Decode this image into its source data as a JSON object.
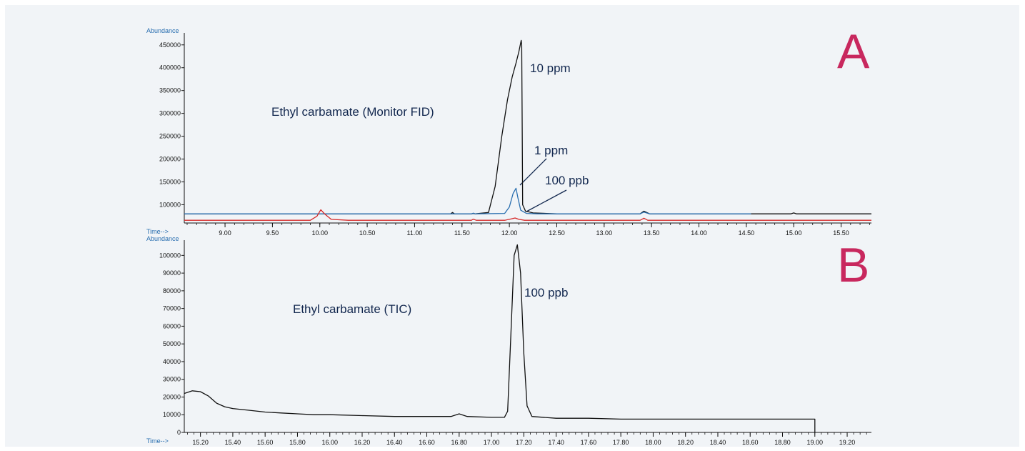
{
  "charts": [
    {
      "id": "A",
      "panel_letter": "A",
      "ylabel": "Abundance",
      "xlabel": "Time-->",
      "inner_label": "Ethyl carbamate (Monitor FID)",
      "x_ticks": [
        "9.00",
        "9.50",
        "10.00",
        "10.50",
        "11.00",
        "11.50",
        "12.00",
        "12.50",
        "13.00",
        "13.50",
        "14.00",
        "14.50",
        "15.00",
        "15.50"
      ],
      "y_ticks": [
        "100000",
        "150000",
        "200000",
        "250000",
        "300000",
        "350000",
        "400000",
        "450000"
      ],
      "annotations": [
        {
          "text": "10 ppm"
        },
        {
          "text": "1 ppm"
        },
        {
          "text": "100 ppb"
        }
      ]
    },
    {
      "id": "B",
      "panel_letter": "B",
      "ylabel": "Abundance",
      "xlabel": "Time-->",
      "inner_label": "Ethyl carbamate (TIC)",
      "x_ticks": [
        "15.20",
        "15.40",
        "15.60",
        "15.80",
        "16.00",
        "16.20",
        "16.40",
        "16.60",
        "16.80",
        "17.00",
        "17.20",
        "17.40",
        "17.60",
        "17.80",
        "18.00",
        "18.20",
        "18.40",
        "18.60",
        "18.80",
        "19.00",
        "19.20"
      ],
      "y_ticks": [
        "0",
        "10000",
        "20000",
        "30000",
        "40000",
        "50000",
        "60000",
        "70000",
        "80000",
        "90000",
        "100000"
      ],
      "annotations": [
        {
          "text": "100 ppb"
        }
      ]
    }
  ],
  "chart_data": [
    {
      "type": "line",
      "ylabel": "Abundance",
      "xlabel": "Time-->",
      "xlim": [
        8.57,
        15.82
      ],
      "ylim": [
        60000,
        470000
      ],
      "colors": {
        "10 ppm": "#111111",
        "1 ppm": "#2a6fb0",
        "100 ppb": "#d62a2a"
      },
      "series": [
        {
          "name": "10 ppm",
          "x": [
            8.57,
            9.5,
            10.5,
            11.0,
            11.38,
            11.4,
            11.42,
            11.6,
            11.62,
            11.64,
            11.78,
            11.85,
            11.92,
            11.98,
            12.03,
            12.07,
            12.1,
            12.125,
            12.13,
            12.14,
            12.17,
            12.25,
            12.5,
            13.0,
            13.38,
            13.42,
            13.48,
            14.0,
            14.97,
            15.0,
            15.03,
            15.82
          ],
          "y": [
            80000,
            80000,
            80000,
            80000,
            80000,
            83000,
            80000,
            80000,
            81000,
            80000,
            83000,
            140000,
            250000,
            330000,
            380000,
            410000,
            435000,
            460000,
            450000,
            100000,
            86000,
            82000,
            80000,
            80000,
            80000,
            86000,
            80000,
            80000,
            80000,
            82000,
            80000,
            80000
          ]
        },
        {
          "name": "1 ppm",
          "x": [
            8.57,
            9.5,
            10.5,
            11.0,
            11.6,
            11.62,
            11.64,
            11.95,
            12.0,
            12.04,
            12.07,
            12.09,
            12.12,
            12.18,
            12.3,
            12.8,
            13.38,
            13.42,
            13.48,
            14.0,
            14.55
          ],
          "y": [
            80000,
            80000,
            80000,
            80000,
            80000,
            81500,
            80000,
            81000,
            95000,
            125000,
            136000,
            115000,
            88000,
            81000,
            80000,
            80000,
            80000,
            84000,
            80000,
            80000,
            80000
          ]
        },
        {
          "name": "100 ppb",
          "x": [
            8.57,
            9.9,
            9.97,
            10.01,
            10.05,
            10.12,
            10.3,
            11.0,
            11.6,
            11.62,
            11.65,
            11.95,
            12.02,
            12.06,
            12.1,
            12.16,
            12.5,
            13.0,
            13.38,
            13.42,
            13.46,
            14.0,
            15.0,
            15.82
          ],
          "y": [
            66000,
            66000,
            75000,
            89000,
            80000,
            68000,
            66000,
            66000,
            66000,
            68500,
            66000,
            66000,
            69000,
            71000,
            68000,
            66000,
            66000,
            66000,
            66000,
            70500,
            66000,
            66000,
            66000,
            66000
          ]
        }
      ]
    },
    {
      "type": "line",
      "ylabel": "Abundance",
      "xlabel": "Time-->",
      "xlim": [
        15.1,
        19.35
      ],
      "ylim": [
        0,
        107000
      ],
      "colors": {
        "TIC": "#111111"
      },
      "series": [
        {
          "name": "",
          "x": [
            15.1,
            15.15,
            15.2,
            15.25,
            15.3,
            15.35,
            15.4,
            15.5,
            15.6,
            15.7,
            15.8,
            15.9,
            16.0,
            16.2,
            16.4,
            16.6,
            16.75,
            16.8,
            16.85,
            17.0,
            17.08,
            17.1,
            17.12,
            17.14,
            17.16,
            17.18,
            17.2,
            17.22,
            17.25,
            17.4,
            17.6,
            17.8,
            18.0,
            18.2,
            18.4,
            18.6,
            18.8,
            18.95,
            19.0,
            19.0
          ],
          "y": [
            22000,
            23500,
            23000,
            20500,
            16500,
            14500,
            13500,
            12500,
            11500,
            11000,
            10500,
            10000,
            10000,
            9500,
            9000,
            9000,
            9000,
            10500,
            9000,
            8500,
            8500,
            12000,
            55000,
            100000,
            106000,
            90000,
            45000,
            15000,
            9000,
            8000,
            8000,
            7500,
            7500,
            7500,
            7500,
            7500,
            7500,
            7500,
            7500,
            0
          ]
        }
      ]
    }
  ]
}
